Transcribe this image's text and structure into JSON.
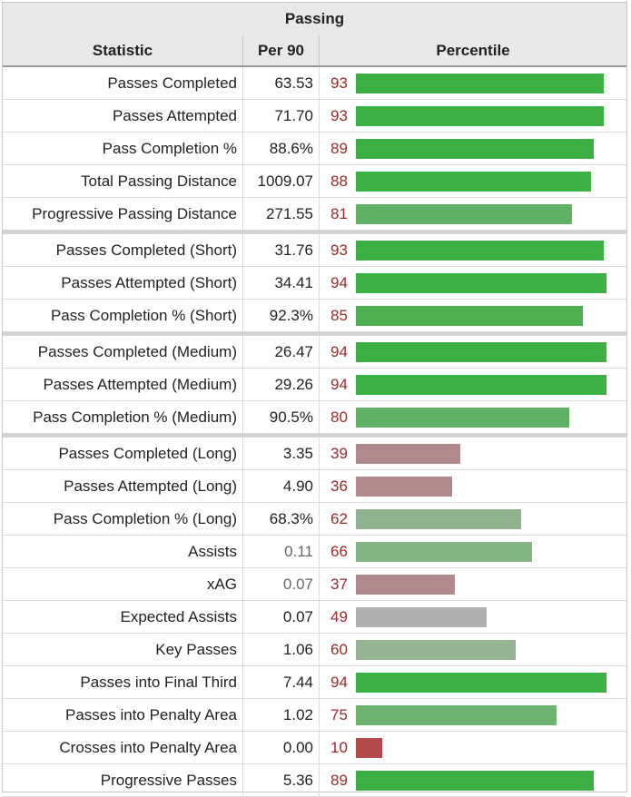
{
  "chart_data": {
    "type": "table",
    "title": "Passing",
    "columns": [
      "Statistic",
      "Per 90",
      "Percentile"
    ],
    "rows": [
      {
        "statistic": "Passes Completed",
        "per90": "63.53",
        "percentile": 93,
        "color": "#3cb043"
      },
      {
        "statistic": "Passes Attempted",
        "per90": "71.70",
        "percentile": 93,
        "color": "#3cb043"
      },
      {
        "statistic": "Pass Completion %",
        "per90": "88.6%",
        "percentile": 89,
        "color": "#3cb043"
      },
      {
        "statistic": "Total Passing Distance",
        "per90": "1009.07",
        "percentile": 88,
        "color": "#3cb043"
      },
      {
        "statistic": "Progressive Passing Distance",
        "per90": "271.55",
        "percentile": 81,
        "color": "#5fb264",
        "group_end": true
      },
      {
        "statistic": "Passes Completed (Short)",
        "per90": "31.76",
        "percentile": 93,
        "color": "#3cb043"
      },
      {
        "statistic": "Passes Attempted (Short)",
        "per90": "34.41",
        "percentile": 94,
        "color": "#3cb043"
      },
      {
        "statistic": "Pass Completion % (Short)",
        "per90": "92.3%",
        "percentile": 85,
        "color": "#4caf50",
        "group_end": true
      },
      {
        "statistic": "Passes Completed (Medium)",
        "per90": "26.47",
        "percentile": 94,
        "color": "#3cb043"
      },
      {
        "statistic": "Passes Attempted (Medium)",
        "per90": "29.26",
        "percentile": 94,
        "color": "#3cb043"
      },
      {
        "statistic": "Pass Completion % (Medium)",
        "per90": "90.5%",
        "percentile": 80,
        "color": "#5fb264",
        "group_end": true
      },
      {
        "statistic": "Passes Completed (Long)",
        "per90": "3.35",
        "percentile": 39,
        "color": "#b08a8a"
      },
      {
        "statistic": "Passes Attempted (Long)",
        "per90": "4.90",
        "percentile": 36,
        "color": "#b08a8a"
      },
      {
        "statistic": "Pass Completion % (Long)",
        "per90": "68.3%",
        "percentile": 62,
        "color": "#8fb28f"
      },
      {
        "statistic": "Assists",
        "per90": "0.11",
        "percentile": 66,
        "color": "#83b583",
        "muted": true
      },
      {
        "statistic": "xAG",
        "per90": "0.07",
        "percentile": 37,
        "color": "#b08a8a",
        "muted": true
      },
      {
        "statistic": "Expected Assists",
        "per90": "0.07",
        "percentile": 49,
        "color": "#b0b0b0"
      },
      {
        "statistic": "Key Passes",
        "per90": "1.06",
        "percentile": 60,
        "color": "#93b393"
      },
      {
        "statistic": "Passes into Final Third",
        "per90": "7.44",
        "percentile": 94,
        "color": "#3cb043"
      },
      {
        "statistic": "Passes into Penalty Area",
        "per90": "1.02",
        "percentile": 75,
        "color": "#6db26f"
      },
      {
        "statistic": "Crosses into Penalty Area",
        "per90": "0.00",
        "percentile": 10,
        "color": "#b44a4a"
      },
      {
        "statistic": "Progressive Passes",
        "per90": "5.36",
        "percentile": 89,
        "color": "#3cb043"
      }
    ],
    "percentile_range": [
      0,
      100
    ]
  }
}
